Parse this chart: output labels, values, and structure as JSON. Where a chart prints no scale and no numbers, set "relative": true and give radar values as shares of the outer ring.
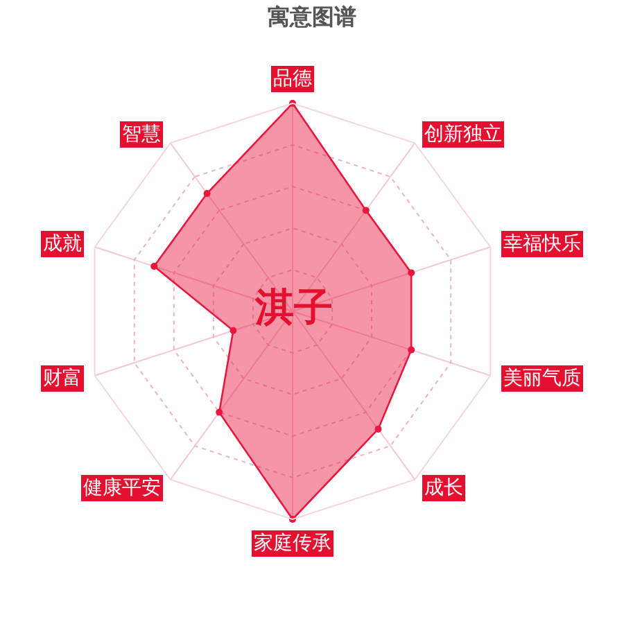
{
  "chart_data": {
    "type": "radar",
    "title": "寓意图谱",
    "categories": [
      "品德",
      "创新独立",
      "幸福快乐",
      "美丽气质",
      "成长",
      "家庭传承",
      "健康平安",
      "财富",
      "成就",
      "智慧"
    ],
    "relative": true,
    "series": [
      {
        "color": "#e8173d",
        "values": [
          1.0,
          0.6,
          0.6,
          0.6,
          0.7,
          1.0,
          0.6,
          0.3,
          0.7,
          0.7
        ]
      }
    ],
    "annotations": [
      "淇子"
    ],
    "marker": "circle",
    "line_style": "solid",
    "grid": true
  }
}
